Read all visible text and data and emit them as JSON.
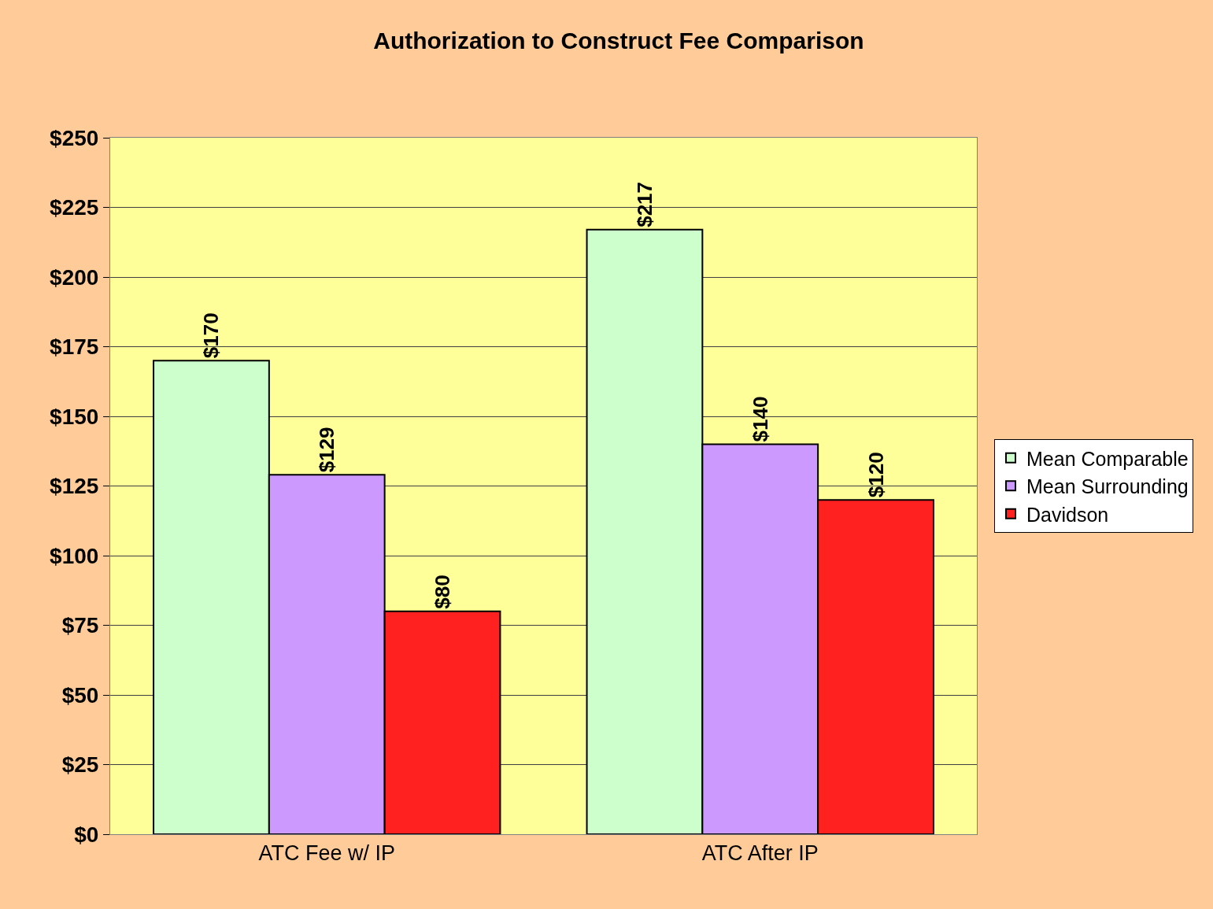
{
  "chart_data": {
    "type": "bar",
    "title": "Authorization to Construct Fee Comparison",
    "categories": [
      "ATC Fee w/ IP",
      "ATC After IP"
    ],
    "series": [
      {
        "name": "Mean Comparable",
        "color": "#ccffcc",
        "values": [
          170,
          217
        ],
        "value_labels": [
          "$170",
          "$217"
        ]
      },
      {
        "name": "Mean Surrounding",
        "color": "#cc99ff",
        "values": [
          129,
          140
        ],
        "value_labels": [
          "$129",
          "$140"
        ]
      },
      {
        "name": "Davidson",
        "color": "#ff2020",
        "values": [
          80,
          120
        ],
        "value_labels": [
          "$80",
          "$120"
        ]
      }
    ],
    "ylim": [
      0,
      250
    ],
    "yticks": [
      {
        "value": 0,
        "label": "$0"
      },
      {
        "value": 25,
        "label": "$25"
      },
      {
        "value": 50,
        "label": "$50"
      },
      {
        "value": 75,
        "label": "$75"
      },
      {
        "value": 100,
        "label": "$100"
      },
      {
        "value": 125,
        "label": "$125"
      },
      {
        "value": 150,
        "label": "$150"
      },
      {
        "value": 175,
        "label": "$175"
      },
      {
        "value": 200,
        "label": "$200"
      },
      {
        "value": 225,
        "label": "$225"
      },
      {
        "value": 250,
        "label": "$250"
      }
    ],
    "grid": "y",
    "legend": "right"
  }
}
